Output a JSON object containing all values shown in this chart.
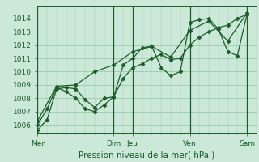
{
  "background_color": "#cce8d8",
  "plot_bg_color": "#cce8d8",
  "grid_color": "#99ccaa",
  "line_color": "#1a5c2a",
  "marker_color": "#1a5c2a",
  "ylabel_ticks": [
    1006,
    1007,
    1008,
    1009,
    1010,
    1011,
    1012,
    1013,
    1014
  ],
  "xlabel": "Pression niveau de la mer( hPa )",
  "xtick_labels": [
    "Mer",
    "",
    "Dim",
    "Jeu",
    "",
    "Ven",
    "",
    "Sam"
  ],
  "xtick_positions": [
    0,
    2,
    4,
    5,
    6.5,
    8,
    9.5,
    11
  ],
  "ylim": [
    1005.4,
    1014.9
  ],
  "xlim": [
    0,
    11.5
  ],
  "line1_x": [
    0,
    0.5,
    1.0,
    1.5,
    2.0,
    2.5,
    3.0,
    3.5,
    4.0,
    4.5,
    5.0,
    5.5,
    6.0,
    6.5,
    7.0,
    7.5,
    8.0,
    8.5,
    9.0,
    9.5,
    10.0,
    10.5,
    11.0
  ],
  "line1_y": [
    1005.6,
    1006.4,
    1008.7,
    1008.8,
    1008.7,
    1007.9,
    1007.3,
    1008.0,
    1008.1,
    1009.5,
    1010.3,
    1010.6,
    1011.0,
    1011.3,
    1010.9,
    1011.0,
    1012.0,
    1012.6,
    1013.0,
    1013.3,
    1013.5,
    1014.0,
    1014.3
  ],
  "line2_x": [
    0,
    0.5,
    1.0,
    1.5,
    2.0,
    2.5,
    3.0,
    3.5,
    4.0,
    4.5,
    5.0,
    5.5,
    6.0,
    6.5,
    7.0,
    7.5,
    8.0,
    8.5,
    9.0,
    9.5,
    10.0,
    10.5,
    11.0
  ],
  "line2_y": [
    1006.0,
    1007.2,
    1008.8,
    1008.5,
    1008.0,
    1007.2,
    1007.0,
    1007.5,
    1008.1,
    1010.5,
    1011.0,
    1011.8,
    1011.9,
    1010.3,
    1009.7,
    1010.0,
    1013.7,
    1013.9,
    1014.0,
    1013.2,
    1011.5,
    1011.2,
    1014.3
  ],
  "line3_x": [
    0,
    1.0,
    2.0,
    3.0,
    4.0,
    5.0,
    6.0,
    7.0,
    8.0,
    9.0,
    10.0,
    11.0
  ],
  "line3_y": [
    1006.3,
    1008.9,
    1009.0,
    1010.0,
    1010.5,
    1011.5,
    1011.9,
    1011.1,
    1013.1,
    1013.8,
    1012.3,
    1014.4
  ],
  "vline_positions": [
    0,
    4,
    5,
    8,
    11
  ],
  "vline_color": "#1a5c2a",
  "tick_fontsize": 6.5,
  "xlabel_fontsize": 7.5
}
